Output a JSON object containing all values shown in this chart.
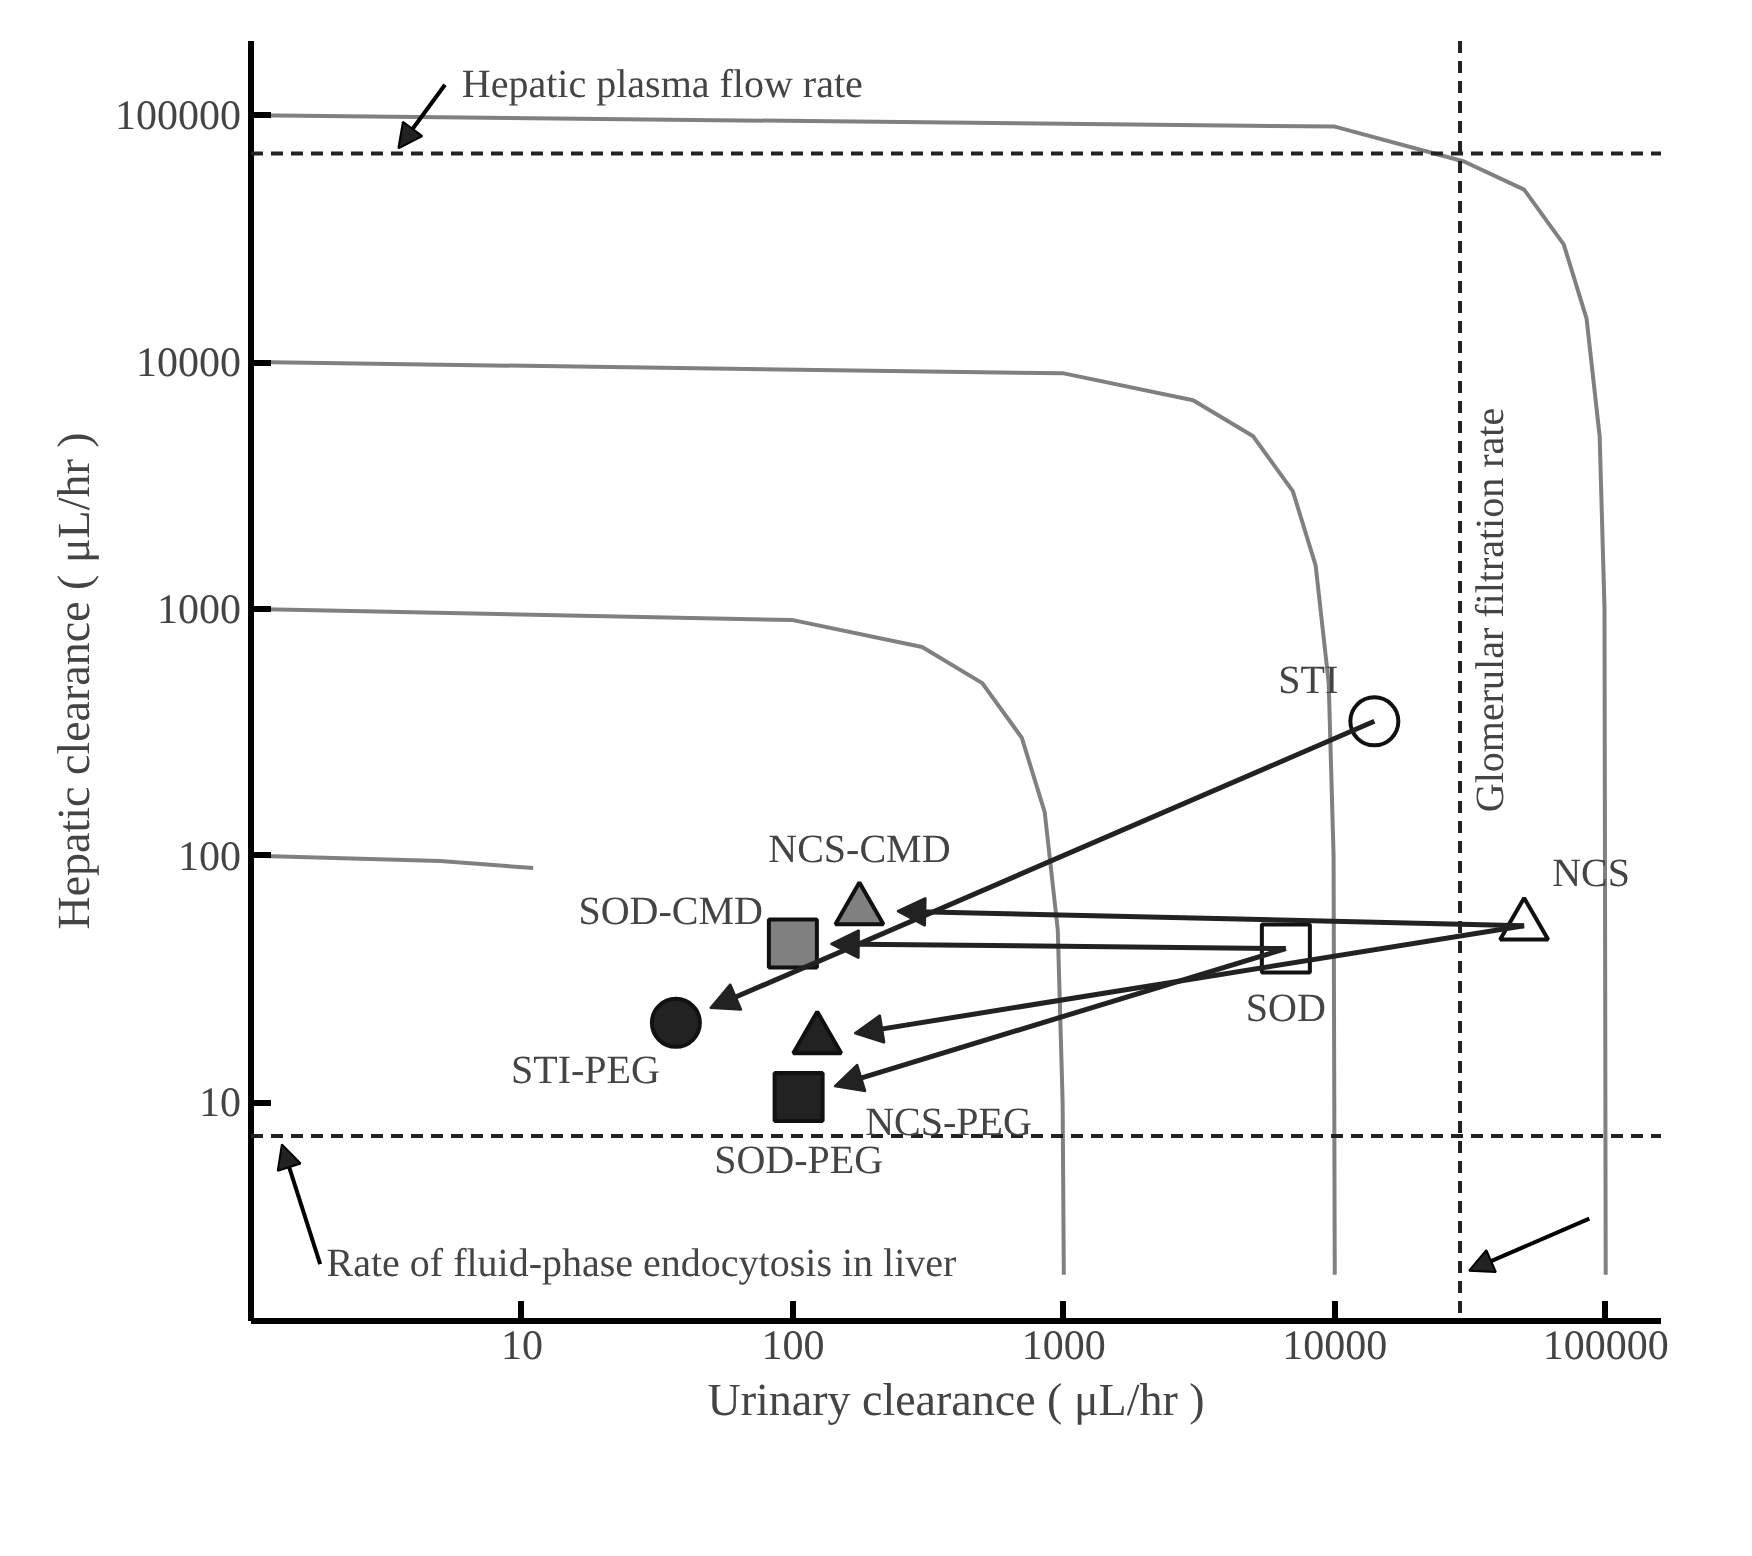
{
  "chart_data": {
    "type": "scatter",
    "xlabel": "Urinary clearance ( μL/hr )",
    "ylabel": "Hepatic clearance ( μL/hr )",
    "log": "xy",
    "grid": false,
    "xlim": [
      1,
      160000
    ],
    "ylim": [
      1.3,
      200000
    ],
    "xticks": [
      10,
      100,
      1000,
      10000,
      100000
    ],
    "yticks": [
      10,
      100,
      1000,
      10000,
      100000
    ],
    "series": [
      {
        "type": "line",
        "color": "#808080",
        "x": [
          1,
          10000,
          30000,
          50000,
          70000,
          85000,
          95000,
          99000,
          100000
        ],
        "values": [
          100000,
          90000,
          65000,
          50000,
          30000,
          15000,
          5000,
          1000,
          2
        ]
      },
      {
        "type": "line",
        "color": "#808080",
        "x": [
          1,
          1000,
          3000,
          5000,
          7000,
          8500,
          9500,
          9900,
          10000
        ],
        "values": [
          10000,
          9000,
          7000,
          5000,
          3000,
          1500,
          500,
          100,
          2
        ]
      },
      {
        "type": "line",
        "color": "#808080",
        "x": [
          1,
          100,
          300,
          500,
          700,
          850,
          950,
          990,
          1000
        ],
        "values": [
          1000,
          900,
          700,
          500,
          300,
          150,
          50,
          10,
          2
        ]
      },
      {
        "type": "line",
        "color": "#808080",
        "x": [
          1,
          5,
          11
        ],
        "values": [
          100,
          95,
          89
        ]
      },
      {
        "name": "STI",
        "marker": "circle",
        "color": "#ffffff",
        "x": [
          14000
        ],
        "values": [
          350
        ]
      },
      {
        "name": "NCS",
        "marker": "triangle",
        "color": "#ffffff",
        "x": [
          50000
        ],
        "values": [
          52
        ]
      },
      {
        "name": "SOD",
        "marker": "square",
        "color": "#ffffff",
        "x": [
          6600
        ],
        "values": [
          42
        ]
      },
      {
        "name": "NCS-CMD",
        "marker": "triangle",
        "color": "#808080",
        "x": [
          176
        ],
        "values": [
          60
        ]
      },
      {
        "name": "SOD-CMD",
        "marker": "square",
        "color": "#808080",
        "x": [
          100
        ],
        "values": [
          44
        ]
      },
      {
        "name": "STI-PEG",
        "marker": "circle",
        "color": "#222222",
        "x": [
          37
        ],
        "values": [
          21
        ]
      },
      {
        "name": "NCS-PEG",
        "marker": "triangle",
        "color": "#222222",
        "x": [
          123
        ],
        "values": [
          18
        ]
      },
      {
        "name": "SOD-PEG",
        "marker": "square",
        "color": "#222222",
        "x": [
          105
        ],
        "values": [
          10.5
        ]
      }
    ],
    "ref_lines": [
      {
        "axis": "y",
        "value": 70000,
        "label": "Hepatic plasma flow rate",
        "line_style": "dashed"
      },
      {
        "axis": "x",
        "value": 29000,
        "label": "Glomerular filtration rate",
        "line_style": "dashed"
      },
      {
        "axis": "y",
        "value": 7.3,
        "label": "Rate of fluid-phase endocytosis in liver",
        "line_style": "dashed"
      }
    ]
  }
}
